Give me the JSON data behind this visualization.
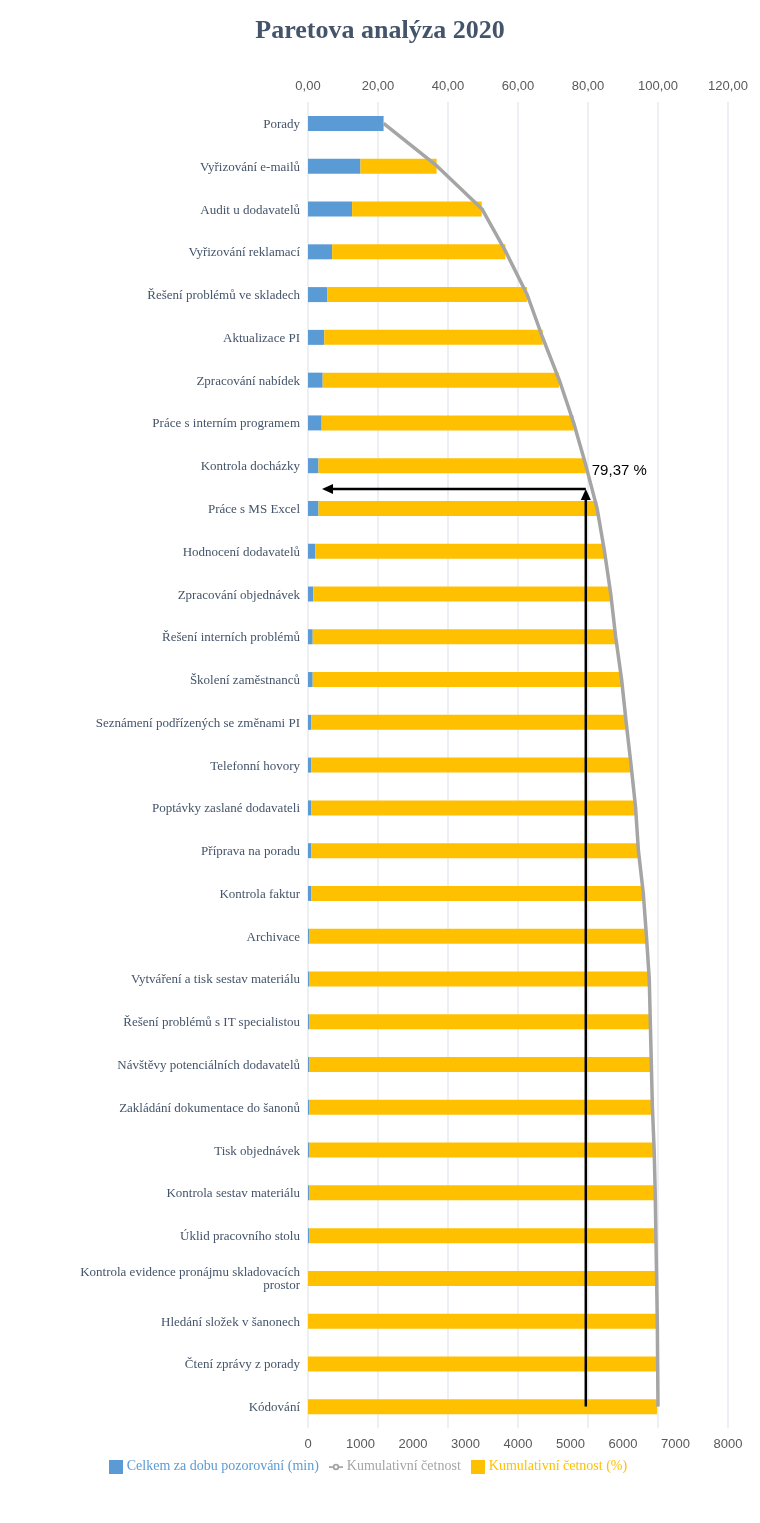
{
  "chart_data": {
    "type": "bar",
    "title": "Paretova analýza 2020",
    "orientation": "horizontal",
    "stacked": true,
    "categories": [
      "Porady",
      "Vyřizování e-mailů",
      "Audit u dodavatelů",
      "Vyřizování reklamací",
      "Řešení problémů ve skladech",
      "Aktualizace PI",
      "Zpracování nabídek",
      "Práce s interním programem",
      "Kontrola docházky",
      "Práce s MS Excel",
      "Hodnocení dodavatelů",
      "Zpracování objednávek",
      "Řešení interních problémů",
      "Školení zaměstnanců",
      "Seznámení podřízených se změnami PI",
      "Telefonní hovory",
      "Poptávky zaslané dodavateli",
      "Příprava na poradu",
      "Kontrola faktur",
      "Archivace",
      "Vytváření a tisk sestav materiálu",
      "Řešení problémů s IT specialistou",
      "Návštěvy potenciálních dodavatelů",
      "Zakládání dokumentace do šanonů",
      "Tisk objednávek",
      "Kontrola sestav materiálu",
      "Úklid pracovního stolu",
      "Kontrola evidence pronájmu skladovacích prostor",
      "Hledání složek v šanonech",
      "Čtení zprávy z porady",
      "Kódování"
    ],
    "series": [
      {
        "name": "Celkem za dobu pozorování (min)",
        "color": "#5b9bd5",
        "values": [
          1440,
          1000,
          840,
          460,
          370,
          310,
          280,
          260,
          200,
          200,
          140,
          100,
          90,
          90,
          60,
          60,
          60,
          60,
          60,
          30,
          30,
          20,
          20,
          20,
          30,
          20,
          20,
          null,
          null,
          null,
          null
        ]
      },
      {
        "name": "Kumulativní četnost (%)",
        "color": "#ffc000",
        "values": [
          0,
          1450,
          2470,
          3300,
          3800,
          4160,
          4500,
          4800,
          5090,
          5310,
          5500,
          5660,
          5760,
          5880,
          5990,
          6090,
          6170,
          6230,
          6320,
          6410,
          6460,
          6490,
          6510,
          6540,
          6560,
          6590,
          6610,
          6620,
          6640,
          6650,
          6650
        ]
      },
      {
        "name": "Kumulativní četnost",
        "type": "line",
        "axis": "x2",
        "color": "#a5a5a5",
        "values": [
          21.6,
          36.9,
          49.7,
          56.5,
          62.6,
          67.0,
          71.8,
          75.9,
          79.4,
          82.6,
          84.7,
          86.5,
          87.9,
          89.6,
          90.9,
          92.3,
          93.6,
          94.4,
          95.8,
          96.7,
          97.5,
          97.8,
          98.1,
          98.4,
          98.9,
          99.2,
          99.4,
          99.6,
          99.8,
          99.9,
          100
        ]
      }
    ],
    "xlim": [
      0,
      8000
    ],
    "xticks": [
      0,
      1000,
      2000,
      3000,
      4000,
      5000,
      6000,
      7000,
      8000
    ],
    "x2lim": [
      0,
      120
    ],
    "x2ticks": [
      {
        "value": 0,
        "label": "0,00"
      },
      {
        "value": 20,
        "label": "20,00"
      },
      {
        "value": 40,
        "label": "40,00"
      },
      {
        "value": 60,
        "label": "60,00"
      },
      {
        "value": 80,
        "label": "80,00"
      },
      {
        "value": 100,
        "label": "100,00"
      },
      {
        "value": 120,
        "label": "120,00"
      }
    ],
    "grid": "x",
    "legend": "bottom",
    "ref_lines": [
      {
        "axis": "x2",
        "value": 79.37,
        "label": "79,37 %",
        "color": "#000000"
      }
    ]
  }
}
